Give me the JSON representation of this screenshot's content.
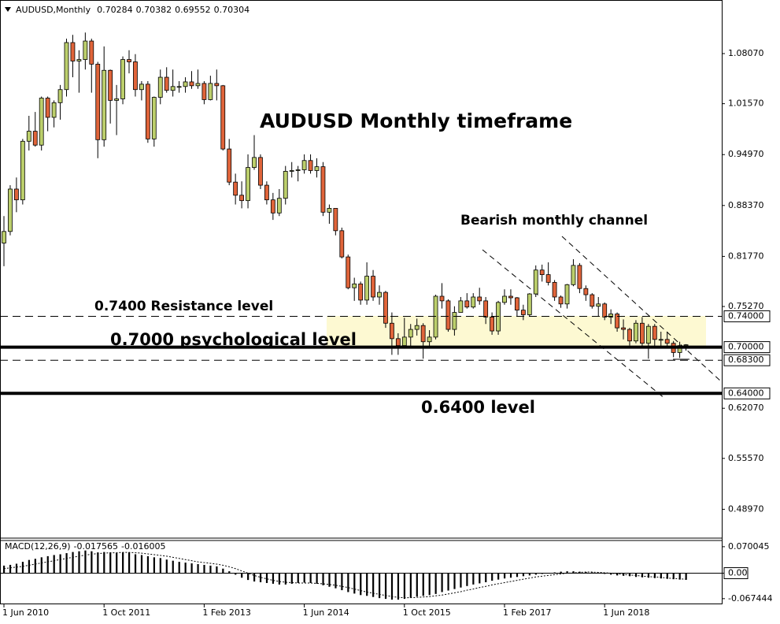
{
  "chart_data": [
    {
      "type": "candlestick",
      "title": "AUDUSD,Monthly",
      "categories": [
        "1 Jun 2010",
        null,
        null,
        null,
        null,
        null,
        null,
        null,
        null,
        null,
        null,
        null,
        null,
        null,
        null,
        null,
        "1 Oct 2011",
        null,
        null,
        null,
        null,
        null,
        null,
        null,
        null,
        null,
        null,
        null,
        null,
        null,
        null,
        null,
        "1 Feb 2013",
        null,
        null,
        null,
        null,
        null,
        null,
        null,
        null,
        null,
        null,
        null,
        null,
        null,
        null,
        null,
        "1 Jun 2014",
        null,
        null,
        null,
        null,
        null,
        null,
        null,
        null,
        null,
        null,
        null,
        null,
        null,
        null,
        null,
        "1 Oct 2015",
        null,
        null,
        null,
        null,
        null,
        null,
        null,
        null,
        null,
        null,
        null,
        null,
        null,
        null,
        null,
        "1 Feb 2017",
        null,
        null,
        null,
        null,
        null,
        null,
        null,
        null,
        null,
        null,
        null,
        null,
        null,
        null,
        null,
        "1 Jun 2018",
        null,
        null,
        null,
        null,
        null,
        null,
        null,
        null,
        null,
        null,
        null,
        null,
        null
      ],
      "open": [
        0.835,
        0.85,
        0.905,
        0.891,
        0.967,
        0.98,
        0.962,
        1.023,
        0.998,
        1.017,
        1.034,
        1.095,
        1.071,
        1.073,
        1.097,
        1.067,
        0.969,
        1.059,
        1.02,
        1.022,
        1.073,
        1.07,
        1.034,
        1.041,
        0.97,
        1.024,
        1.05,
        1.033,
        1.038,
        1.038,
        1.044,
        1.039,
        1.042,
        1.021,
        1.042,
        1.039,
        0.957,
        0.914,
        0.897,
        0.89,
        0.933,
        0.946,
        0.91,
        0.891,
        0.874,
        0.893,
        0.928,
        0.929,
        0.93,
        0.942,
        0.929,
        0.934,
        0.875,
        0.88,
        0.851,
        0.817,
        0.777,
        0.782,
        0.761,
        0.792,
        0.765,
        0.771,
        0.731,
        0.711,
        0.702,
        0.713,
        0.723,
        0.728,
        0.707,
        0.713,
        0.766,
        0.76,
        0.723,
        0.745,
        0.76,
        0.752,
        0.765,
        0.76,
        0.739,
        0.721,
        0.758,
        0.766,
        0.764,
        0.748,
        0.742,
        0.769,
        0.8,
        0.794,
        0.784,
        0.765,
        0.756,
        0.781,
        0.806,
        0.776,
        0.768,
        0.753,
        0.756,
        0.739,
        0.743,
        0.725,
        0.723,
        0.708,
        0.731,
        0.705,
        0.727,
        0.71,
        0.71,
        0.705,
        0.693,
        0.70284
      ],
      "high": [
        0.87,
        0.91,
        0.92,
        0.97,
        1.0,
        1.005,
        1.025,
        1.025,
        1.02,
        1.04,
        1.1,
        1.105,
        1.085,
        1.108,
        1.1,
        1.07,
        1.09,
        1.06,
        1.04,
        1.077,
        1.085,
        1.08,
        1.045,
        1.045,
        1.025,
        1.06,
        1.063,
        1.06,
        1.045,
        1.05,
        1.058,
        1.06,
        1.045,
        1.052,
        1.06,
        1.04,
        0.97,
        0.925,
        0.915,
        0.95,
        0.975,
        0.95,
        0.915,
        0.9,
        0.905,
        0.935,
        0.94,
        0.935,
        0.95,
        0.95,
        0.945,
        0.94,
        0.885,
        0.88,
        0.855,
        0.82,
        0.79,
        0.785,
        0.81,
        0.8,
        0.78,
        0.773,
        0.745,
        0.718,
        0.738,
        0.73,
        0.737,
        0.731,
        0.722,
        0.768,
        0.783,
        0.762,
        0.753,
        0.765,
        0.77,
        0.77,
        0.777,
        0.765,
        0.745,
        0.76,
        0.775,
        0.775,
        0.765,
        0.755,
        0.77,
        0.806,
        0.807,
        0.81,
        0.787,
        0.767,
        0.782,
        0.814,
        0.809,
        0.78,
        0.77,
        0.765,
        0.758,
        0.749,
        0.745,
        0.736,
        0.725,
        0.735,
        0.739,
        0.73,
        0.73,
        0.72,
        0.72,
        0.708,
        0.707,
        0.70382
      ],
      "low": [
        0.805,
        0.845,
        0.875,
        0.885,
        0.955,
        0.96,
        0.955,
        0.98,
        0.985,
        0.995,
        1.025,
        1.05,
        1.03,
        1.06,
        1.03,
        0.945,
        0.96,
        0.99,
        0.975,
        1.015,
        1.055,
        1.025,
        1.02,
        0.965,
        0.96,
        1.015,
        1.03,
        1.025,
        1.03,
        1.03,
        1.035,
        1.035,
        1.015,
        1.02,
        1.02,
        0.955,
        0.91,
        0.885,
        0.88,
        0.88,
        0.93,
        0.905,
        0.885,
        0.865,
        0.87,
        0.885,
        0.92,
        0.915,
        0.925,
        0.925,
        0.92,
        0.87,
        0.86,
        0.845,
        0.815,
        0.775,
        0.76,
        0.755,
        0.755,
        0.76,
        0.755,
        0.725,
        0.69,
        0.69,
        0.698,
        0.7,
        0.715,
        0.685,
        0.7,
        0.71,
        0.75,
        0.72,
        0.715,
        0.745,
        0.75,
        0.75,
        0.755,
        0.73,
        0.716,
        0.716,
        0.755,
        0.755,
        0.74,
        0.735,
        0.74,
        0.765,
        0.785,
        0.78,
        0.76,
        0.751,
        0.75,
        0.779,
        0.77,
        0.76,
        0.75,
        0.74,
        0.735,
        0.73,
        0.72,
        0.71,
        0.702,
        0.705,
        0.7,
        0.685,
        0.7,
        0.7,
        0.7,
        0.687,
        0.686,
        0.69552
      ],
      "close": [
        0.85,
        0.905,
        0.891,
        0.967,
        0.98,
        0.962,
        1.023,
        0.998,
        1.017,
        1.034,
        1.095,
        1.071,
        1.073,
        1.097,
        1.067,
        0.969,
        1.059,
        1.02,
        1.022,
        1.073,
        1.07,
        1.034,
        1.041,
        0.97,
        1.024,
        1.05,
        1.033,
        1.038,
        1.038,
        1.044,
        1.039,
        1.042,
        1.021,
        1.042,
        1.039,
        0.957,
        0.914,
        0.897,
        0.89,
        0.933,
        0.946,
        0.91,
        0.891,
        0.874,
        0.893,
        0.928,
        0.929,
        0.93,
        0.942,
        0.929,
        0.934,
        0.875,
        0.88,
        0.851,
        0.817,
        0.777,
        0.782,
        0.761,
        0.792,
        0.765,
        0.771,
        0.731,
        0.711,
        0.702,
        0.713,
        0.723,
        0.728,
        0.707,
        0.713,
        0.766,
        0.76,
        0.723,
        0.745,
        0.76,
        0.752,
        0.765,
        0.76,
        0.739,
        0.721,
        0.758,
        0.766,
        0.764,
        0.748,
        0.742,
        0.769,
        0.8,
        0.794,
        0.784,
        0.765,
        0.756,
        0.781,
        0.806,
        0.776,
        0.768,
        0.753,
        0.756,
        0.739,
        0.743,
        0.725,
        0.723,
        0.708,
        0.731,
        0.705,
        0.727,
        0.71,
        0.71,
        0.705,
        0.693,
        0.702,
        0.70304
      ],
      "up_color": "#bccf6c",
      "down_color": "#e0643a",
      "ylim": [
        0.4523,
        1.1502
      ],
      "yticks": [
        {
          "value": 1.0807,
          "label": "1.08070"
        },
        {
          "value": 1.0157,
          "label": "1.01570"
        },
        {
          "value": 0.9497,
          "label": "0.94970"
        },
        {
          "value": 0.8837,
          "label": "0.88370"
        },
        {
          "value": 0.8177,
          "label": "0.81770"
        },
        {
          "value": 0.7527,
          "label": "0.75270"
        },
        {
          "value": 0.6207,
          "label": "0.62070"
        },
        {
          "value": 0.5557,
          "label": "0.55570"
        },
        {
          "value": 0.4897,
          "label": "0.48970"
        }
      ],
      "levels": [
        {
          "value": 0.74,
          "label": "0.74000",
          "style": "dashed"
        },
        {
          "value": 0.7,
          "label": "0.70000",
          "style": "solid"
        },
        {
          "value": 0.683,
          "label": "0.68300",
          "style": "dashed"
        },
        {
          "value": 0.64,
          "label": "0.64000",
          "style": "solid"
        }
      ],
      "annotations": [
        "AUDUSD Monthly timeframe",
        "Bearish monthly channel",
        "0.7400 Resistance level",
        "0.7000 psychological level",
        "0.6400 level"
      ]
    },
    {
      "type": "macd",
      "title": "MACD(12,26,9)",
      "macd": {
        "color": "#000000",
        "values": [
          0.02,
          0.022,
          0.025,
          0.03,
          0.035,
          0.038,
          0.042,
          0.045,
          0.048,
          0.05,
          0.053,
          0.056,
          0.058,
          0.06,
          0.058,
          0.055,
          0.056,
          0.055,
          0.054,
          0.055,
          0.055,
          0.05,
          0.048,
          0.045,
          0.042,
          0.04,
          0.036,
          0.033,
          0.03,
          0.028,
          0.026,
          0.024,
          0.022,
          0.02,
          0.018,
          0.012,
          0.005,
          -0.004,
          -0.012,
          -0.018,
          -0.022,
          -0.024,
          -0.026,
          -0.028,
          -0.03,
          -0.03,
          -0.028,
          -0.026,
          -0.025,
          -0.026,
          -0.028,
          -0.032,
          -0.036,
          -0.04,
          -0.045,
          -0.05,
          -0.054,
          -0.058,
          -0.06,
          -0.063,
          -0.066,
          -0.068,
          -0.07,
          -0.07,
          -0.068,
          -0.065,
          -0.062,
          -0.06,
          -0.058,
          -0.055,
          -0.05,
          -0.046,
          -0.042,
          -0.038,
          -0.034,
          -0.03,
          -0.027,
          -0.024,
          -0.02,
          -0.017,
          -0.014,
          -0.012,
          -0.01,
          -0.008,
          -0.006,
          -0.004,
          -0.002,
          0,
          0.002,
          0.004,
          0.005,
          0.005,
          0.004,
          0.003,
          0.002,
          0,
          -0.002,
          -0.004,
          -0.006,
          -0.007,
          -0.008,
          -0.01,
          -0.011,
          -0.012,
          -0.013,
          -0.014,
          -0.015,
          -0.016,
          -0.017,
          -0.017565
        ]
      },
      "signal": {
        "color": "#000000",
        "values": [
          0.012,
          0.014,
          0.016,
          0.018,
          0.021,
          0.024,
          0.027,
          0.03,
          0.033,
          0.036,
          0.039,
          0.042,
          0.045,
          0.048,
          0.05,
          0.052,
          0.053,
          0.054,
          0.054,
          0.055,
          0.055,
          0.054,
          0.053,
          0.051,
          0.049,
          0.047,
          0.045,
          0.042,
          0.039,
          0.036,
          0.033,
          0.03,
          0.028,
          0.026,
          0.024,
          0.021,
          0.017,
          0.012,
          0.006,
          0,
          -0.006,
          -0.011,
          -0.015,
          -0.019,
          -0.022,
          -0.024,
          -0.025,
          -0.026,
          -0.026,
          -0.026,
          -0.027,
          -0.028,
          -0.03,
          -0.032,
          -0.035,
          -0.038,
          -0.042,
          -0.046,
          -0.05,
          -0.053,
          -0.056,
          -0.059,
          -0.062,
          -0.064,
          -0.065,
          -0.065,
          -0.064,
          -0.063,
          -0.062,
          -0.06,
          -0.058,
          -0.055,
          -0.052,
          -0.049,
          -0.045,
          -0.042,
          -0.038,
          -0.035,
          -0.031,
          -0.028,
          -0.025,
          -0.022,
          -0.019,
          -0.016,
          -0.013,
          -0.01,
          -0.008,
          -0.006,
          -0.004,
          -0.002,
          0,
          0.001,
          0.002,
          0.003,
          0.003,
          0.002,
          0.001,
          0,
          -0.002,
          -0.003,
          -0.005,
          -0.006,
          -0.008,
          -0.009,
          -0.01,
          -0.011,
          -0.013,
          -0.014,
          -0.015,
          -0.016005
        ]
      },
      "ylim": [
        -0.0803,
        0.0865
      ],
      "yticks": [
        0.070045,
        {
          "value": 0,
          "label": "0.00"
        },
        -0.067444
      ]
    }
  ]
}
